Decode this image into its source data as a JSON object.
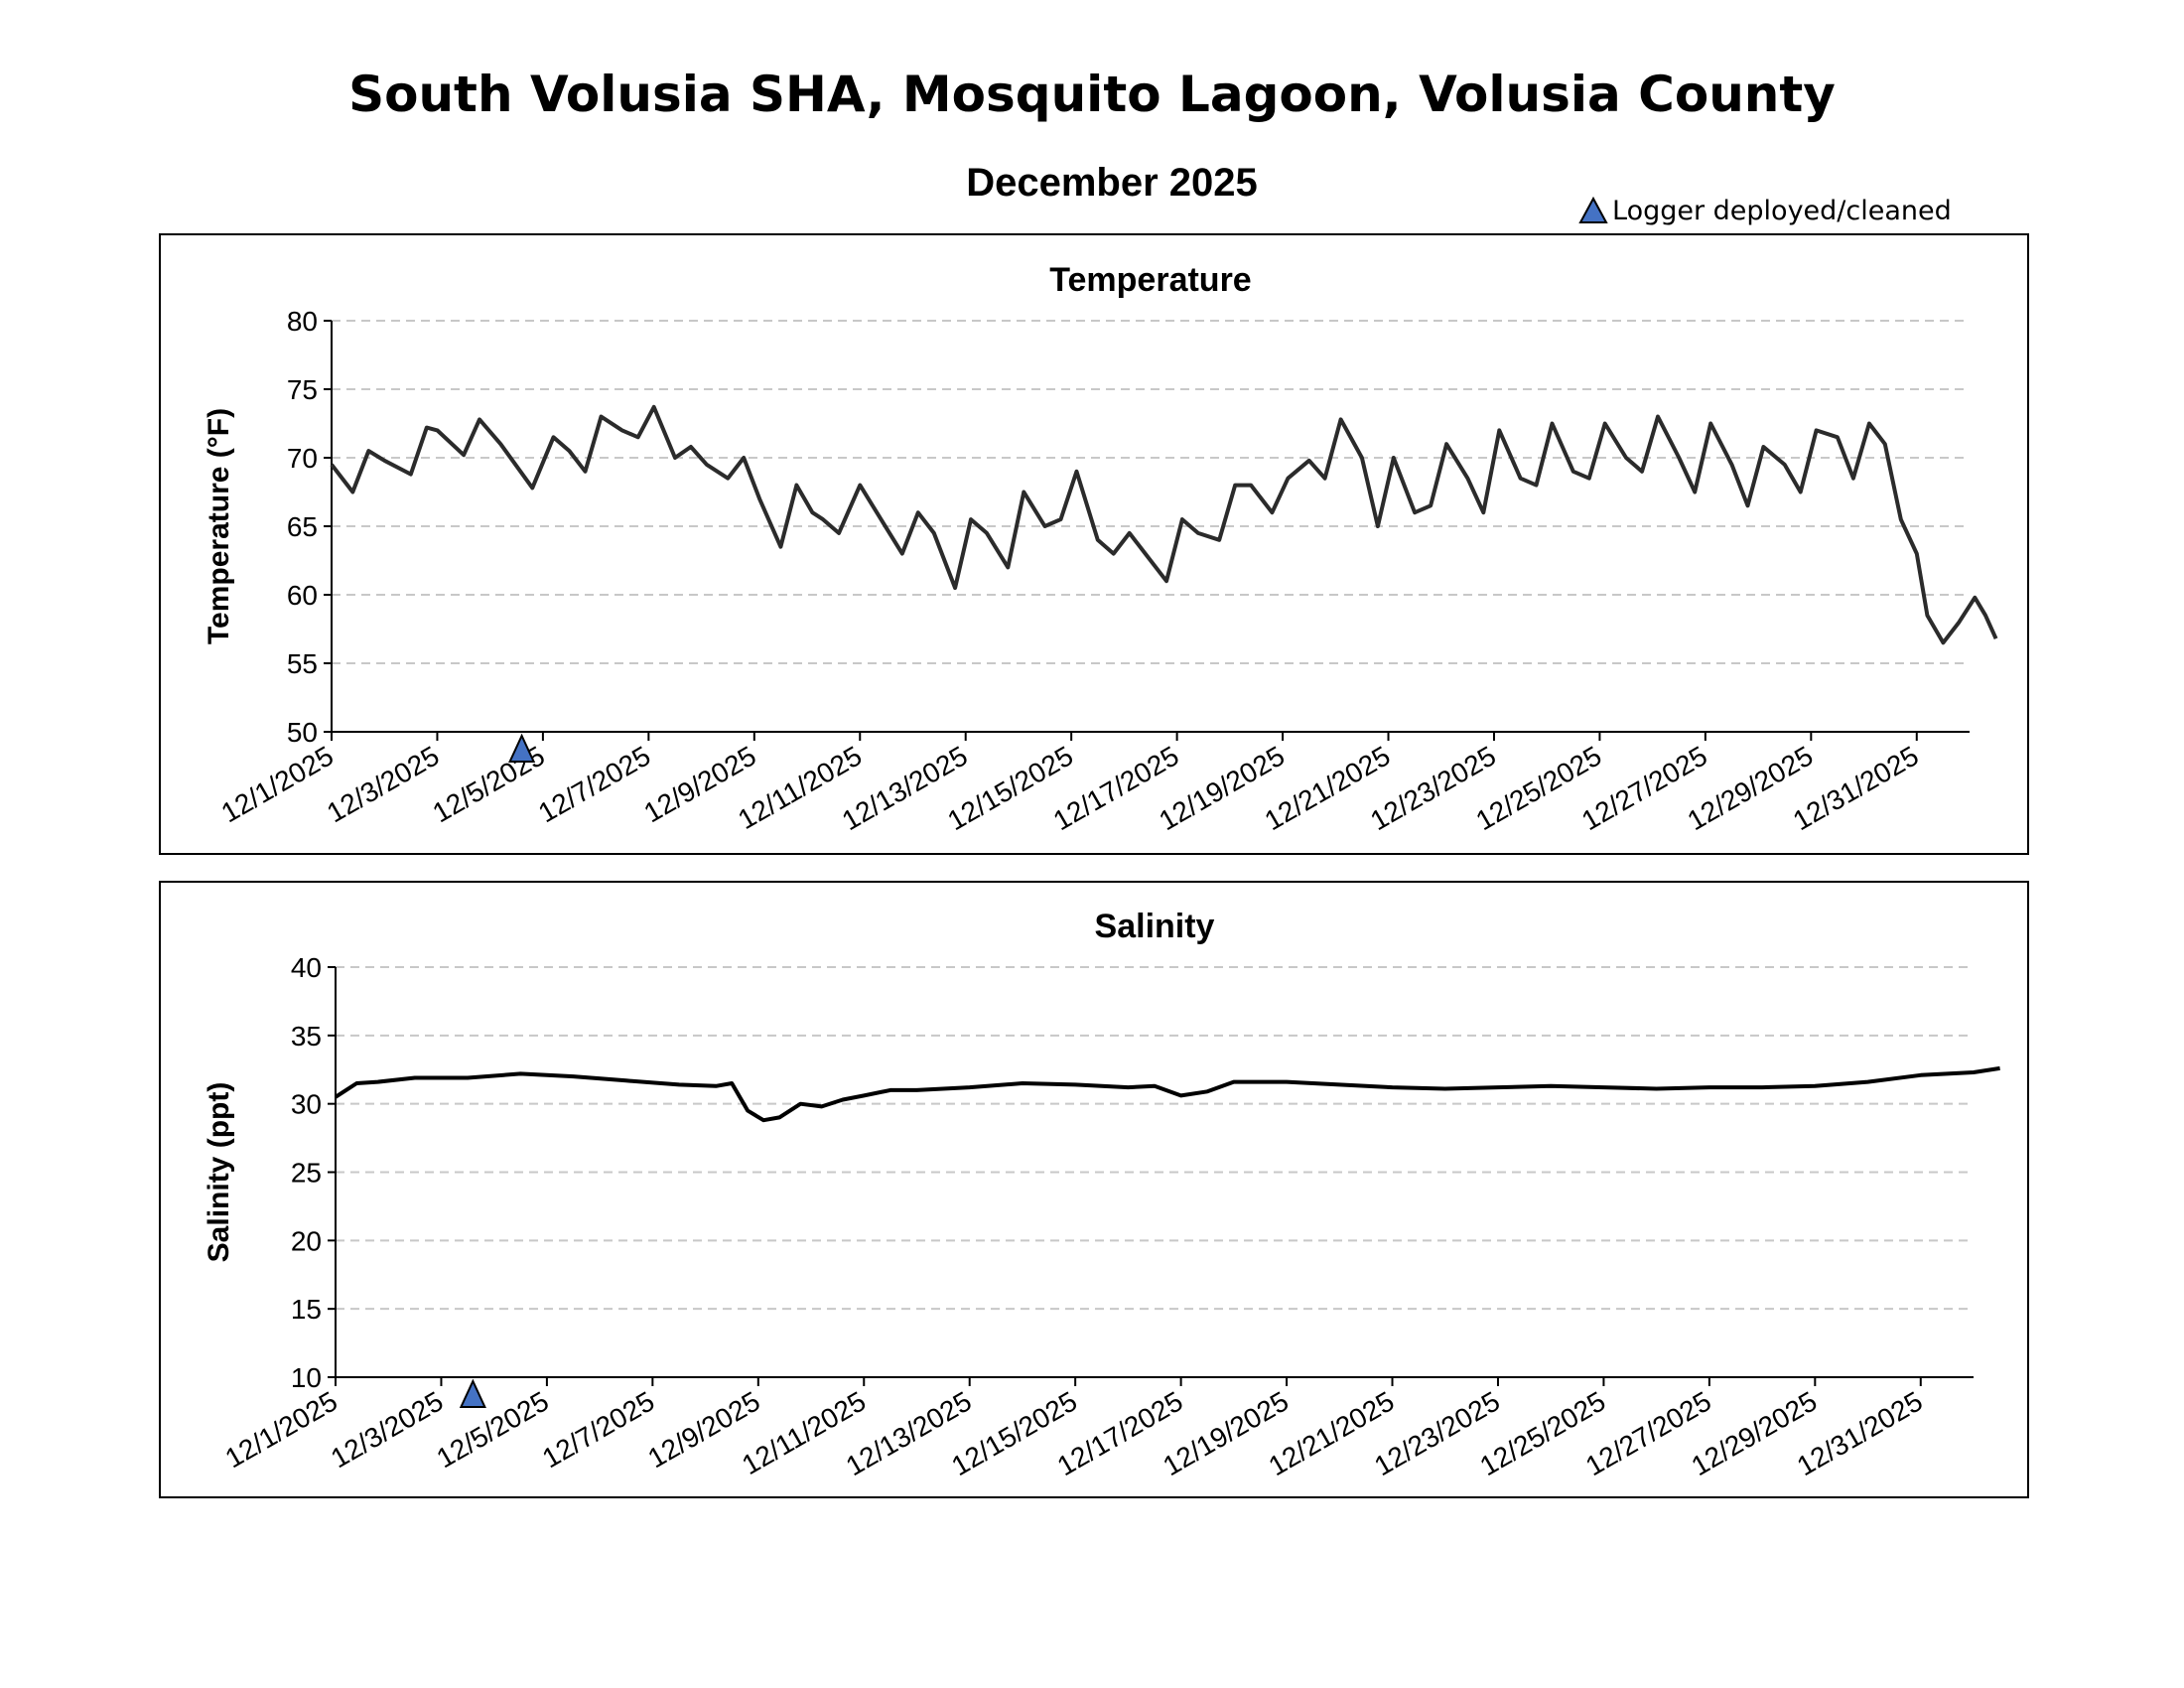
{
  "title": "South Volusia SHA, Mosquito Lagoon, Volusia County",
  "subtitle": "December 2025",
  "legend": {
    "label": "Logger deployed/cleaned",
    "marker_color": "#4472c4"
  },
  "chart_data": [
    {
      "type": "line",
      "title": "Temperature",
      "xlabel": "",
      "ylabel": "Temperature (°F)",
      "xlim": [
        "12/1/2025",
        "1/1/2026"
      ],
      "ylim": [
        50,
        80
      ],
      "yticks": [
        50,
        55,
        60,
        65,
        70,
        75,
        80
      ],
      "xtick_labels": [
        "12/1/2025",
        "12/3/2025",
        "12/5/2025",
        "12/7/2025",
        "12/9/2025",
        "12/11/2025",
        "12/13/2025",
        "12/15/2025",
        "12/17/2025",
        "12/19/2025",
        "12/21/2025",
        "12/23/2025",
        "12/25/2025",
        "12/27/2025",
        "12/29/2025",
        "12/31/2025"
      ],
      "grid": "horizontal dashed",
      "line_color": "#2b2b2b",
      "logger_deployed_day": 3.6,
      "series": [
        {
          "name": "Temperature",
          "x_days": [
            0,
            0.4,
            0.7,
            1.0,
            1.5,
            1.8,
            2.0,
            2.5,
            2.8,
            3.2,
            3.8,
            4.2,
            4.5,
            4.8,
            5.1,
            5.5,
            5.8,
            6.1,
            6.5,
            6.8,
            7.1,
            7.5,
            7.8,
            8.1,
            8.5,
            8.8,
            9.1,
            9.3,
            9.6,
            10.0,
            10.4,
            10.8,
            11.1,
            11.4,
            11.8,
            12.1,
            12.4,
            12.8,
            13.1,
            13.5,
            13.8,
            14.1,
            14.5,
            14.8,
            15.1,
            15.4,
            15.8,
            16.1,
            16.4,
            16.8,
            17.1,
            17.4,
            17.8,
            18.1,
            18.5,
            18.8,
            19.1,
            19.5,
            19.8,
            20.1,
            20.5,
            20.8,
            21.1,
            21.5,
            21.8,
            22.1,
            22.5,
            22.8,
            23.1,
            23.5,
            23.8,
            24.1,
            24.5,
            24.8,
            25.1,
            25.5,
            25.8,
            26.1,
            26.5,
            26.8,
            27.1,
            27.5,
            27.8,
            28.1,
            28.5,
            28.8,
            29.1,
            29.4,
            29.7,
            30.0,
            30.2,
            30.5,
            30.8,
            31.1,
            31.3,
            31.5
          ],
          "y": [
            69.5,
            67.5,
            70.5,
            69.8,
            68.8,
            72.2,
            72.0,
            70.2,
            72.8,
            71.0,
            67.8,
            71.5,
            70.5,
            69.0,
            73.0,
            72.0,
            71.5,
            73.7,
            70.0,
            70.8,
            69.5,
            68.5,
            70.0,
            67.0,
            63.5,
            68.0,
            66.0,
            65.5,
            64.5,
            68.0,
            65.5,
            63.0,
            66.0,
            64.5,
            60.5,
            65.5,
            64.5,
            62.0,
            67.5,
            65.0,
            65.5,
            69.0,
            64.0,
            63.0,
            64.5,
            63.0,
            61.0,
            65.5,
            64.5,
            64.0,
            68.0,
            68.0,
            66.0,
            68.5,
            69.8,
            68.5,
            72.8,
            70.0,
            65.0,
            70.0,
            66.0,
            66.5,
            71.0,
            68.5,
            66.0,
            72.0,
            68.5,
            68.0,
            72.5,
            69.0,
            68.5,
            72.5,
            70.0,
            69.0,
            73.0,
            70.0,
            67.5,
            72.5,
            69.5,
            66.5,
            70.8,
            69.5,
            67.5,
            72.0,
            71.5,
            68.5,
            72.5,
            71.0,
            65.5,
            63.0,
            58.5,
            56.5,
            58.0,
            59.8,
            58.5,
            56.8
          ]
        }
      ]
    },
    {
      "type": "line",
      "title": "Salinity",
      "xlabel": "",
      "ylabel": "Salinity (ppt)",
      "xlim": [
        "12/1/2025",
        "1/1/2026"
      ],
      "ylim": [
        10,
        40
      ],
      "yticks": [
        10,
        15,
        20,
        25,
        30,
        35,
        40
      ],
      "xtick_labels": [
        "12/1/2025",
        "12/3/2025",
        "12/5/2025",
        "12/7/2025",
        "12/9/2025",
        "12/11/2025",
        "12/13/2025",
        "12/15/2025",
        "12/17/2025",
        "12/19/2025",
        "12/21/2025",
        "12/23/2025",
        "12/25/2025",
        "12/27/2025",
        "12/29/2025",
        "12/31/2025"
      ],
      "grid": "horizontal dashed",
      "line_color": "#000000",
      "logger_deployed_day": 2.6,
      "series": [
        {
          "name": "Salinity",
          "x_days": [
            0,
            0.2,
            0.4,
            0.8,
            1.5,
            2.5,
            3.5,
            4.5,
            5.5,
            6.5,
            7.2,
            7.5,
            7.8,
            8.1,
            8.4,
            8.8,
            9.2,
            9.6,
            10.0,
            10.5,
            11.0,
            12.0,
            13.0,
            14.0,
            15.0,
            15.5,
            16.0,
            16.5,
            17.0,
            18.0,
            19.0,
            20.0,
            21.0,
            22.0,
            23.0,
            24.0,
            25.0,
            26.0,
            27.0,
            28.0,
            29.0,
            30.0,
            31.0,
            31.5
          ],
          "y": [
            30.5,
            31.0,
            31.5,
            31.6,
            31.9,
            31.9,
            32.2,
            32.0,
            31.7,
            31.4,
            31.3,
            31.5,
            29.5,
            28.8,
            29.0,
            30.0,
            29.8,
            30.3,
            30.6,
            31.0,
            31.0,
            31.2,
            31.5,
            31.4,
            31.2,
            31.3,
            30.6,
            30.9,
            31.6,
            31.6,
            31.4,
            31.2,
            31.1,
            31.2,
            31.3,
            31.2,
            31.1,
            31.2,
            31.2,
            31.3,
            31.6,
            32.1,
            32.3,
            32.6
          ]
        }
      ]
    }
  ]
}
